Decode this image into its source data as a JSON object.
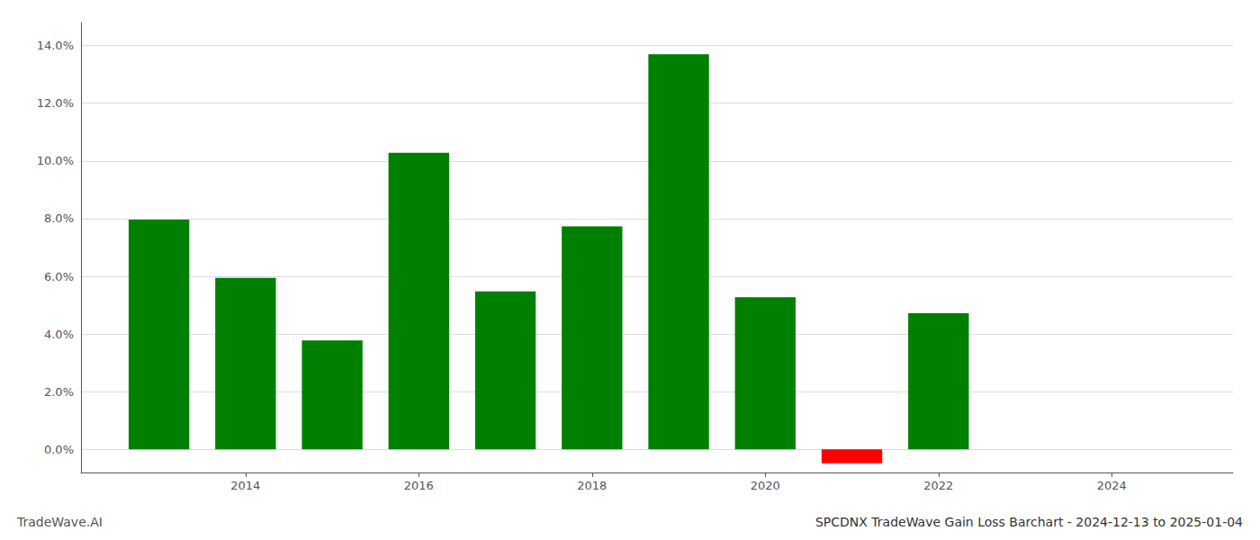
{
  "chart_data": {
    "type": "bar",
    "title": "SPCDNX TradeWave Gain Loss Barchart - 2024-12-13 to 2025-01-04",
    "annotations": [
      "TradeWave.AI"
    ],
    "x": [
      2013,
      2014,
      2015,
      2016,
      2017,
      2018,
      2019,
      2020,
      2021,
      2022
    ],
    "values": [
      0.0797,
      0.0595,
      0.0378,
      0.1028,
      0.0548,
      0.0773,
      0.137,
      0.0528,
      -0.0048,
      0.0472
    ],
    "colors": [
      "#008000",
      "#008000",
      "#008000",
      "#008000",
      "#008000",
      "#008000",
      "#008000",
      "#008000",
      "#ff0000",
      "#008000"
    ],
    "xlim": [
      2012.1,
      2025.4
    ],
    "xticks": [
      2014,
      2016,
      2018,
      2020,
      2022,
      2024
    ],
    "ylim": [
      -0.008,
      0.148
    ],
    "yticks": [
      {
        "value": 0.0,
        "label": "0.0%"
      },
      {
        "value": 0.02,
        "label": "2.0%"
      },
      {
        "value": 0.04,
        "label": "4.0%"
      },
      {
        "value": 0.06,
        "label": "6.0%"
      },
      {
        "value": 0.08,
        "label": "8.0%"
      },
      {
        "value": 0.1,
        "label": "10.0%"
      },
      {
        "value": 0.12,
        "label": "12.0%"
      },
      {
        "value": 0.14,
        "label": "14.0%"
      }
    ],
    "grid": true
  }
}
